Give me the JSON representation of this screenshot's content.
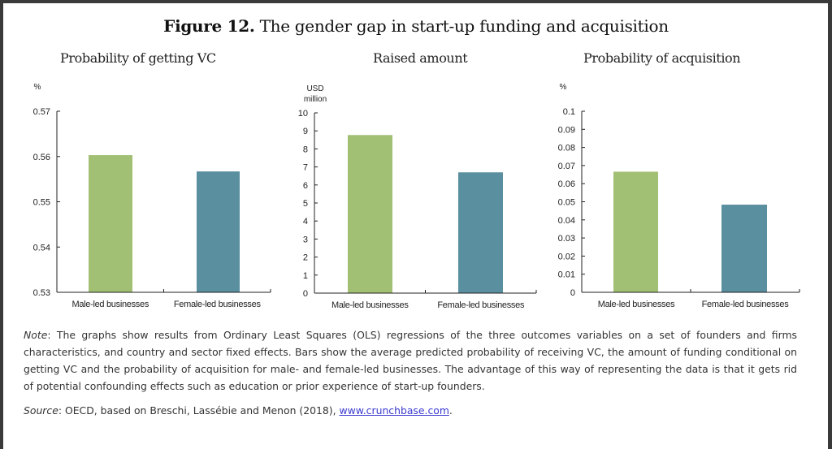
{
  "figure": {
    "label": "Figure 12.",
    "title": "The gender gap in start-up funding and acquisition"
  },
  "chart_data": [
    {
      "type": "bar",
      "title": "Probability of getting VC",
      "ylabel": "%",
      "categories": [
        "Male-led businesses",
        "Female-led businesses"
      ],
      "values": [
        0.5603,
        0.5567
      ],
      "ylim": [
        0.53,
        0.57
      ],
      "yticks": [
        "0.53",
        "0.54",
        "0.55",
        "0.56",
        "0.57"
      ],
      "colors": [
        "#a2c073",
        "#5a8fa0"
      ],
      "grid": false
    },
    {
      "type": "bar",
      "title": "Raised amount",
      "ylabel": [
        "USD",
        "million"
      ],
      "categories": [
        "Male-led businesses",
        "Female-led businesses"
      ],
      "values": [
        8.77,
        6.7
      ],
      "ylim": [
        0,
        10
      ],
      "yticks": [
        "0",
        "1",
        "2",
        "3",
        "4",
        "5",
        "6",
        "7",
        "8",
        "9",
        "10"
      ],
      "colors": [
        "#a2c073",
        "#5a8fa0"
      ],
      "grid": false
    },
    {
      "type": "bar",
      "title": "Probability of acquisition",
      "ylabel": "%",
      "categories": [
        "Male-led businesses",
        "Female-led businesses"
      ],
      "values": [
        0.0666,
        0.0484
      ],
      "ylim": [
        0,
        0.1
      ],
      "yticks": [
        "0",
        "0.01",
        "0.02",
        "0.03",
        "0.04",
        "0.05",
        "0.06",
        "0.07",
        "0.08",
        "0.09",
        "0.1"
      ],
      "colors": [
        "#a2c073",
        "#5a8fa0"
      ],
      "grid": false
    }
  ],
  "note": {
    "label": "Note",
    "text": ": The graphs show results from Ordinary Least Squares (OLS) regressions of the three outcomes variables on a set of founders and firms characteristics, and country and sector fixed effects. Bars show the average predicted probability of receiving VC, the amount of funding conditional on getting VC and the probability of acquisition for male- and female-led businesses. The advantage of this way of representing the data is that it gets rid of potential confounding effects such as education or prior experience of start-up founders."
  },
  "source": {
    "label": "Source",
    "text": ": OECD, based on Breschi, Lassébie and Menon (2018), ",
    "link": "www.crunchbase.com",
    "end": "."
  }
}
